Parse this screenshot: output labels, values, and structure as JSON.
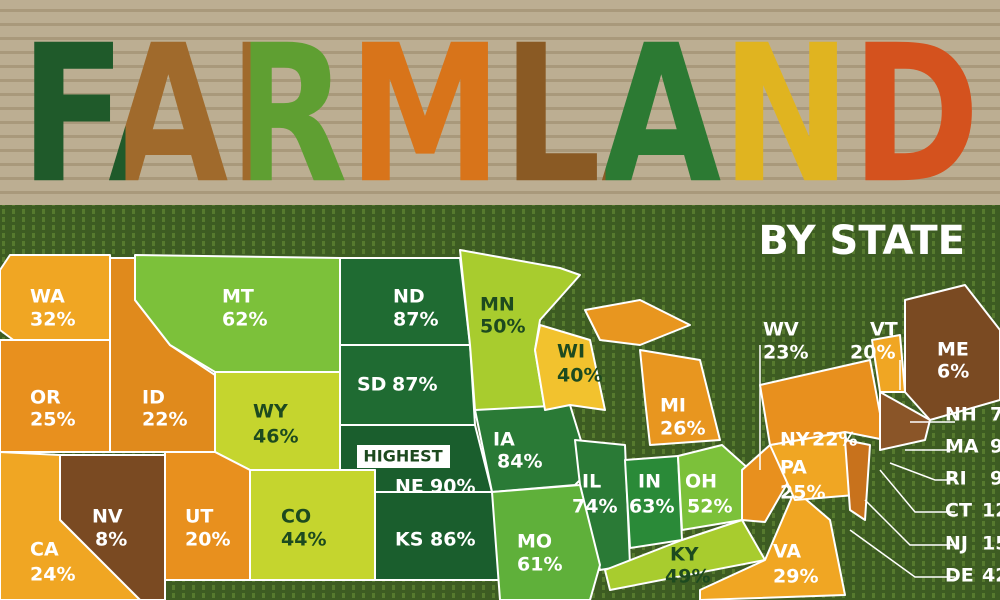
{
  "title": "FARMLAND",
  "subtitle": "BY STATE",
  "callout": "HIGHEST",
  "states": [
    {
      "code": "WA",
      "share": "32%"
    },
    {
      "code": "OR",
      "share": "25%"
    },
    {
      "code": "ID",
      "share": "22%"
    },
    {
      "code": "MT",
      "share": "62%"
    },
    {
      "code": "WY",
      "share": "46%"
    },
    {
      "code": "ND",
      "share": "87%"
    },
    {
      "code": "SD",
      "share": "87%"
    },
    {
      "code": "NE",
      "share": "90%"
    },
    {
      "code": "KS",
      "share": "86%"
    },
    {
      "code": "MN",
      "share": "50%"
    },
    {
      "code": "IA",
      "share": "84%"
    },
    {
      "code": "WI",
      "share": "40%"
    },
    {
      "code": "MI",
      "share": "26%"
    },
    {
      "code": "IL",
      "share": "74%"
    },
    {
      "code": "IN",
      "share": "63%"
    },
    {
      "code": "OH",
      "share": "52%"
    },
    {
      "code": "MO",
      "share": "61%"
    },
    {
      "code": "KY",
      "share": "49%"
    },
    {
      "code": "CO",
      "share": "44%"
    },
    {
      "code": "UT",
      "share": "20%"
    },
    {
      "code": "NV",
      "share": "8%"
    },
    {
      "code": "CA",
      "share": "24%"
    },
    {
      "code": "WV",
      "share": "23%"
    },
    {
      "code": "VT",
      "share": "20%"
    },
    {
      "code": "ME",
      "share": "6%"
    },
    {
      "code": "NY",
      "share": "22%"
    },
    {
      "code": "PA",
      "share": "25%"
    },
    {
      "code": "VA",
      "share": "29%"
    },
    {
      "code": "NH",
      "share": "7"
    },
    {
      "code": "MA",
      "share": "9"
    },
    {
      "code": "RI",
      "share": "9"
    },
    {
      "code": "CT",
      "share": "12"
    },
    {
      "code": "NJ",
      "share": "15"
    },
    {
      "code": "DE",
      "share": "42"
    }
  ]
}
